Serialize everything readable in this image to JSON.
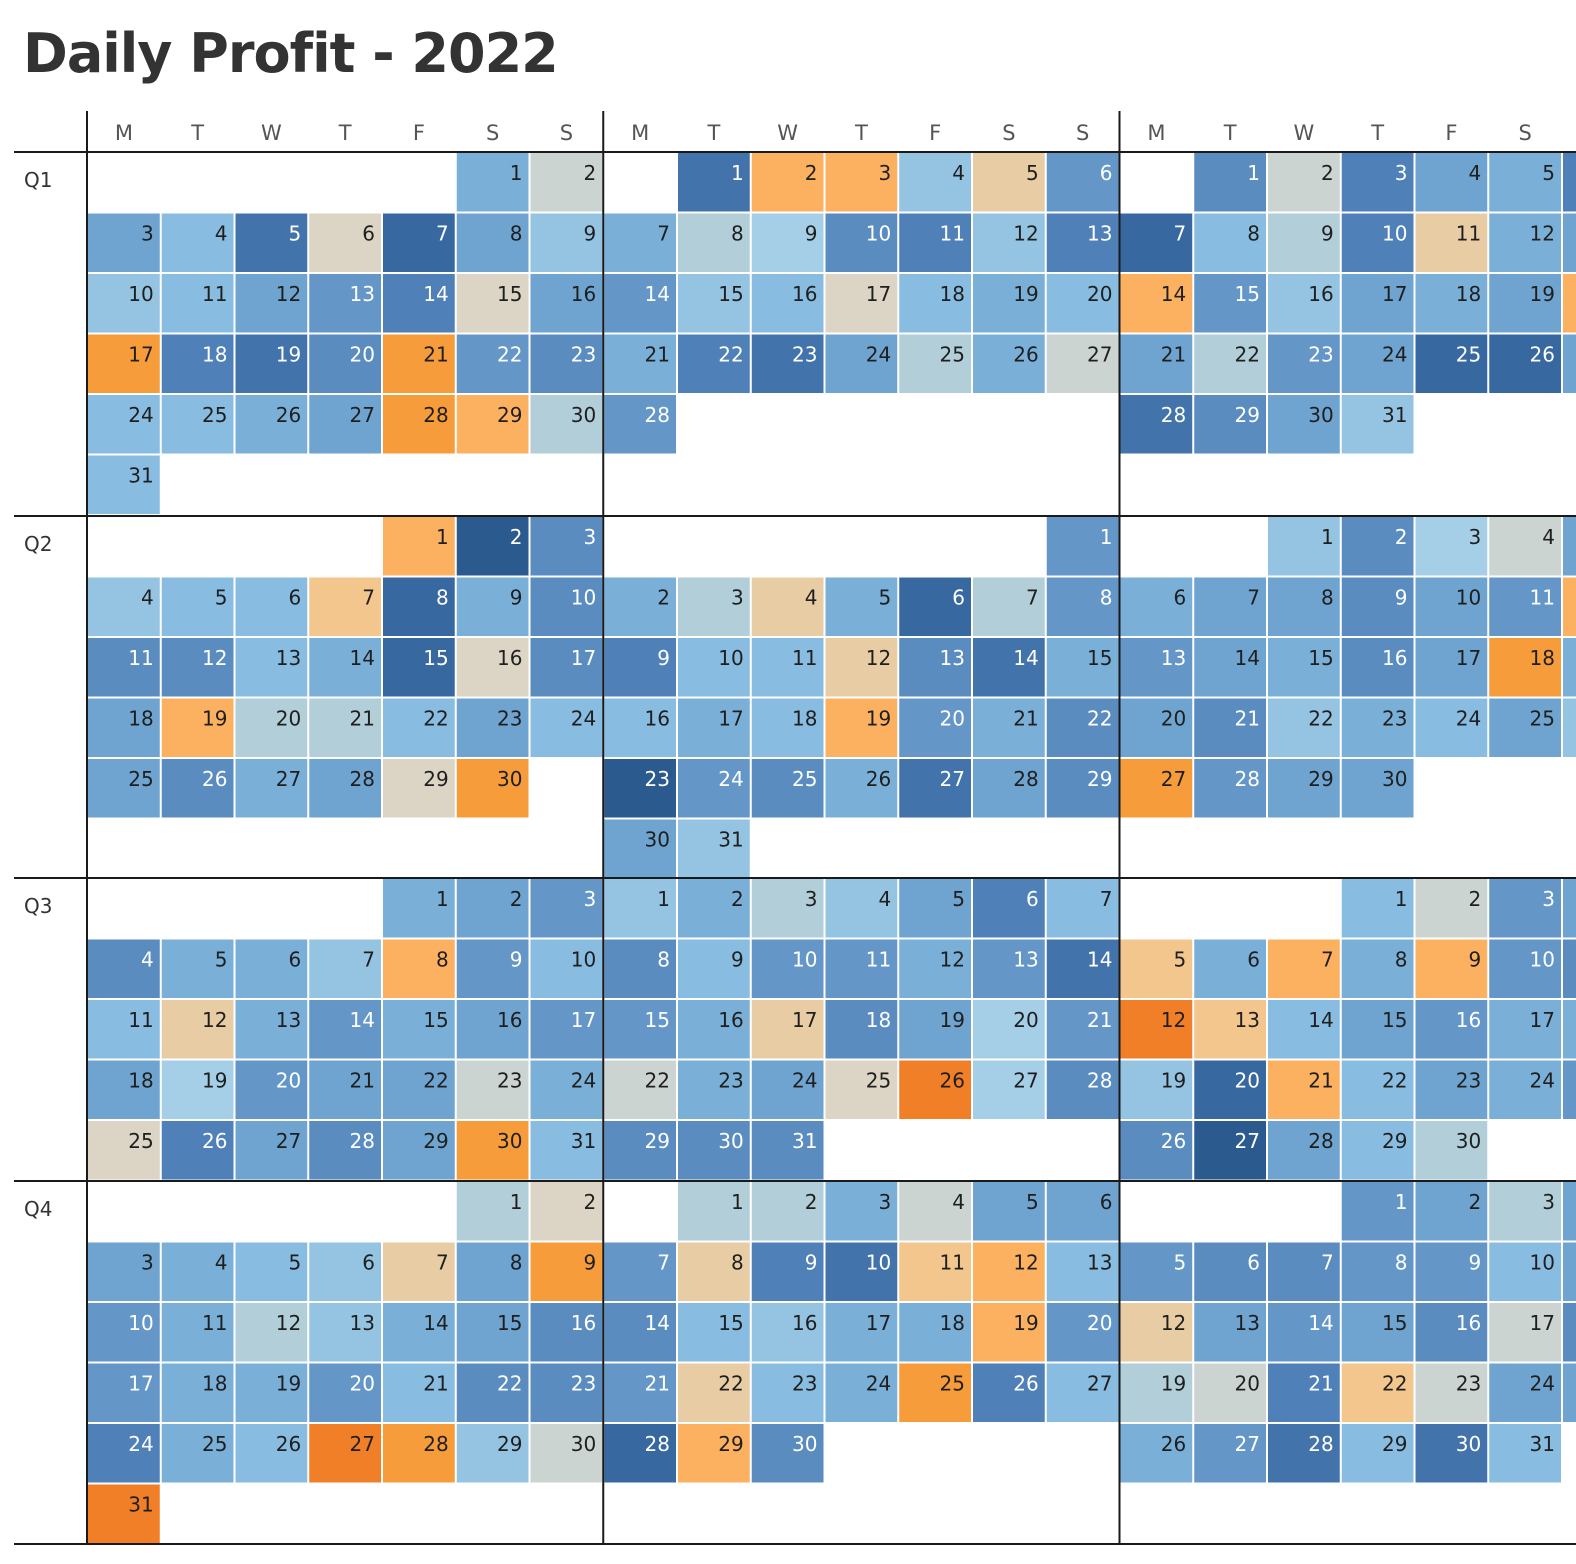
{
  "title": "Daily Profit - 2022",
  "chart_data": {
    "type": "heatmap",
    "title": "Daily Profit - 2022",
    "year": 2022,
    "rows": [
      "Q1",
      "Q2",
      "Q3",
      "Q4"
    ],
    "weekday_labels": [
      "M",
      "T",
      "W",
      "T",
      "F",
      "S",
      "S"
    ],
    "palette": {
      "1": "#f17f28",
      "2": "#f79c3a",
      "3": "#fcb161",
      "4": "#f3c68d",
      "5": "#e8cca4",
      "6": "#dcd4c4",
      "7": "#ccd4d2",
      "8": "#b2ced8",
      "9": "#a4cfe6",
      "10": "#95c4e2",
      "11": "#88bce0",
      "12": "#7ab0d8",
      "13": "#6ea4cf",
      "14": "#6497c7",
      "15": "#5a8cc0",
      "16": "#4f80b7",
      "17": "#4373ab",
      "18": "#3868a0",
      "19": "#2b5a8f"
    },
    "months": [
      {
        "month": 1,
        "first_weekday": 5,
        "days": 31,
        "levels": [
          12,
          7,
          13,
          11,
          17,
          6,
          18,
          13,
          10,
          10,
          11,
          13,
          14,
          16,
          6,
          13,
          2,
          16,
          17,
          15,
          2,
          14,
          15,
          11,
          11,
          12,
          13,
          2,
          3,
          8,
          11
        ]
      },
      {
        "month": 2,
        "first_weekday": 1,
        "days": 28,
        "levels": [
          17,
          3,
          3,
          10,
          5,
          14,
          12,
          8,
          9,
          15,
          16,
          10,
          16,
          14,
          10,
          11,
          6,
          11,
          12,
          11,
          12,
          16,
          17,
          13,
          8,
          12,
          7,
          14
        ]
      },
      {
        "month": 3,
        "first_weekday": 1,
        "days": 31,
        "levels": [
          15,
          7,
          16,
          13,
          12,
          16,
          18,
          11,
          8,
          16,
          5,
          12,
          13,
          3,
          14,
          10,
          13,
          12,
          13,
          3,
          13,
          8,
          14,
          13,
          18,
          18,
          13,
          17,
          15,
          13,
          10
        ]
      },
      {
        "month": 4,
        "first_weekday": 4,
        "days": 30,
        "levels": [
          3,
          19,
          15,
          10,
          11,
          11,
          4,
          18,
          12,
          15,
          15,
          15,
          11,
          12,
          18,
          6,
          15,
          13,
          3,
          8,
          8,
          11,
          13,
          11,
          13,
          15,
          12,
          13,
          6,
          2
        ]
      },
      {
        "month": 5,
        "first_weekday": 6,
        "days": 31,
        "levels": [
          14,
          12,
          8,
          5,
          12,
          18,
          8,
          14,
          16,
          11,
          11,
          5,
          15,
          17,
          12,
          11,
          12,
          11,
          3,
          14,
          12,
          15,
          19,
          14,
          15,
          12,
          17,
          13,
          15,
          13,
          10
        ]
      },
      {
        "month": 6,
        "first_weekday": 2,
        "days": 30,
        "levels": [
          10,
          15,
          9,
          7,
          13,
          12,
          13,
          13,
          15,
          13,
          14,
          3,
          14,
          13,
          12,
          15,
          13,
          2,
          12,
          13,
          15,
          10,
          12,
          11,
          13,
          10,
          2,
          14,
          13,
          13
        ]
      },
      {
        "month": 7,
        "first_weekday": 4,
        "days": 31,
        "levels": [
          12,
          13,
          14,
          15,
          12,
          12,
          10,
          3,
          14,
          11,
          11,
          5,
          12,
          14,
          12,
          13,
          14,
          13,
          9,
          14,
          13,
          13,
          7,
          12,
          6,
          16,
          13,
          15,
          13,
          2,
          11
        ]
      },
      {
        "month": 8,
        "first_weekday": 0,
        "days": 31,
        "levels": [
          10,
          12,
          8,
          10,
          13,
          16,
          11,
          15,
          11,
          14,
          14,
          12,
          14,
          17,
          14,
          12,
          5,
          15,
          13,
          9,
          14,
          7,
          12,
          13,
          6,
          1,
          9,
          15,
          15,
          15,
          15
        ]
      },
      {
        "month": 9,
        "first_weekday": 3,
        "days": 30,
        "levels": [
          11,
          7,
          14,
          13,
          4,
          12,
          3,
          12,
          3,
          14,
          15,
          1,
          4,
          11,
          13,
          14,
          12,
          12,
          10,
          18,
          3,
          11,
          13,
          12,
          14,
          15,
          19,
          13,
          11,
          8
        ]
      },
      {
        "month": 10,
        "first_weekday": 5,
        "days": 31,
        "levels": [
          8,
          6,
          13,
          12,
          11,
          10,
          5,
          13,
          2,
          14,
          12,
          8,
          10,
          12,
          13,
          15,
          14,
          12,
          12,
          14,
          11,
          15,
          15,
          16,
          12,
          11,
          1,
          2,
          10,
          7,
          1
        ]
      },
      {
        "month": 11,
        "first_weekday": 1,
        "days": 30,
        "levels": [
          8,
          8,
          12,
          7,
          13,
          13,
          14,
          5,
          16,
          17,
          4,
          3,
          11,
          15,
          11,
          10,
          12,
          12,
          3,
          14,
          14,
          5,
          11,
          12,
          2,
          16,
          11,
          18,
          3,
          15
        ]
      },
      {
        "month": 12,
        "first_weekday": 3,
        "days": 31,
        "levels": [
          14,
          13,
          8,
          13,
          14,
          15,
          15,
          14,
          14,
          11,
          13,
          5,
          13,
          14,
          13,
          15,
          7,
          15,
          8,
          7,
          16,
          4,
          7,
          13,
          13,
          12,
          14,
          17,
          11,
          17,
          11
        ]
      }
    ]
  }
}
